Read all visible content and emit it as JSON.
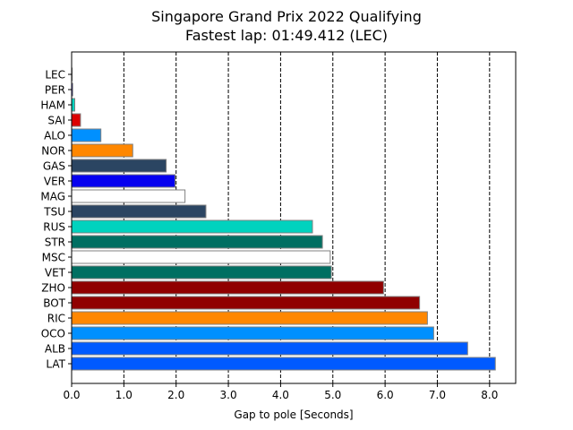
{
  "chart_data": {
    "type": "bar",
    "orientation": "horizontal",
    "title": "Singapore Grand Prix 2022 Qualifying",
    "subtitle": "Fastest lap: 01:49.412 (LEC)",
    "xlabel": "Gap to pole [Seconds]",
    "ylabel": "",
    "xlim": [
      0,
      8.5
    ],
    "xticks": [
      0,
      1,
      2,
      3,
      4,
      5,
      6,
      7,
      8
    ],
    "xtick_labels": [
      "0.0",
      "1.0",
      "2.0",
      "3.0",
      "4.0",
      "5.0",
      "6.0",
      "7.0",
      "8.0"
    ],
    "grid": "vertical dashed at major ticks",
    "categories": [
      "LEC",
      "PER",
      "HAM",
      "SAI",
      "ALO",
      "NOR",
      "GAS",
      "VER",
      "MAG",
      "TSU",
      "RUS",
      "STR",
      "MSC",
      "VET",
      "ZHO",
      "BOT",
      "RIC",
      "OCO",
      "ALB",
      "LAT"
    ],
    "values": [
      0.0,
      0.02,
      0.06,
      0.17,
      0.56,
      1.17,
      1.81,
      1.98,
      2.17,
      2.57,
      4.61,
      4.8,
      4.95,
      4.97,
      5.97,
      6.66,
      6.81,
      6.93,
      7.58,
      8.11
    ],
    "colors": [
      "#dc0000",
      "#0600ef",
      "#00d2be",
      "#dc0000",
      "#0090ff",
      "#ff8700",
      "#2b4562",
      "#0600ef",
      "#ffffff",
      "#2b4562",
      "#00d2be",
      "#006f62",
      "#ffffff",
      "#006f62",
      "#900000",
      "#900000",
      "#ff8700",
      "#0090ff",
      "#005aff",
      "#005aff"
    ],
    "edge_color": "#808080"
  }
}
